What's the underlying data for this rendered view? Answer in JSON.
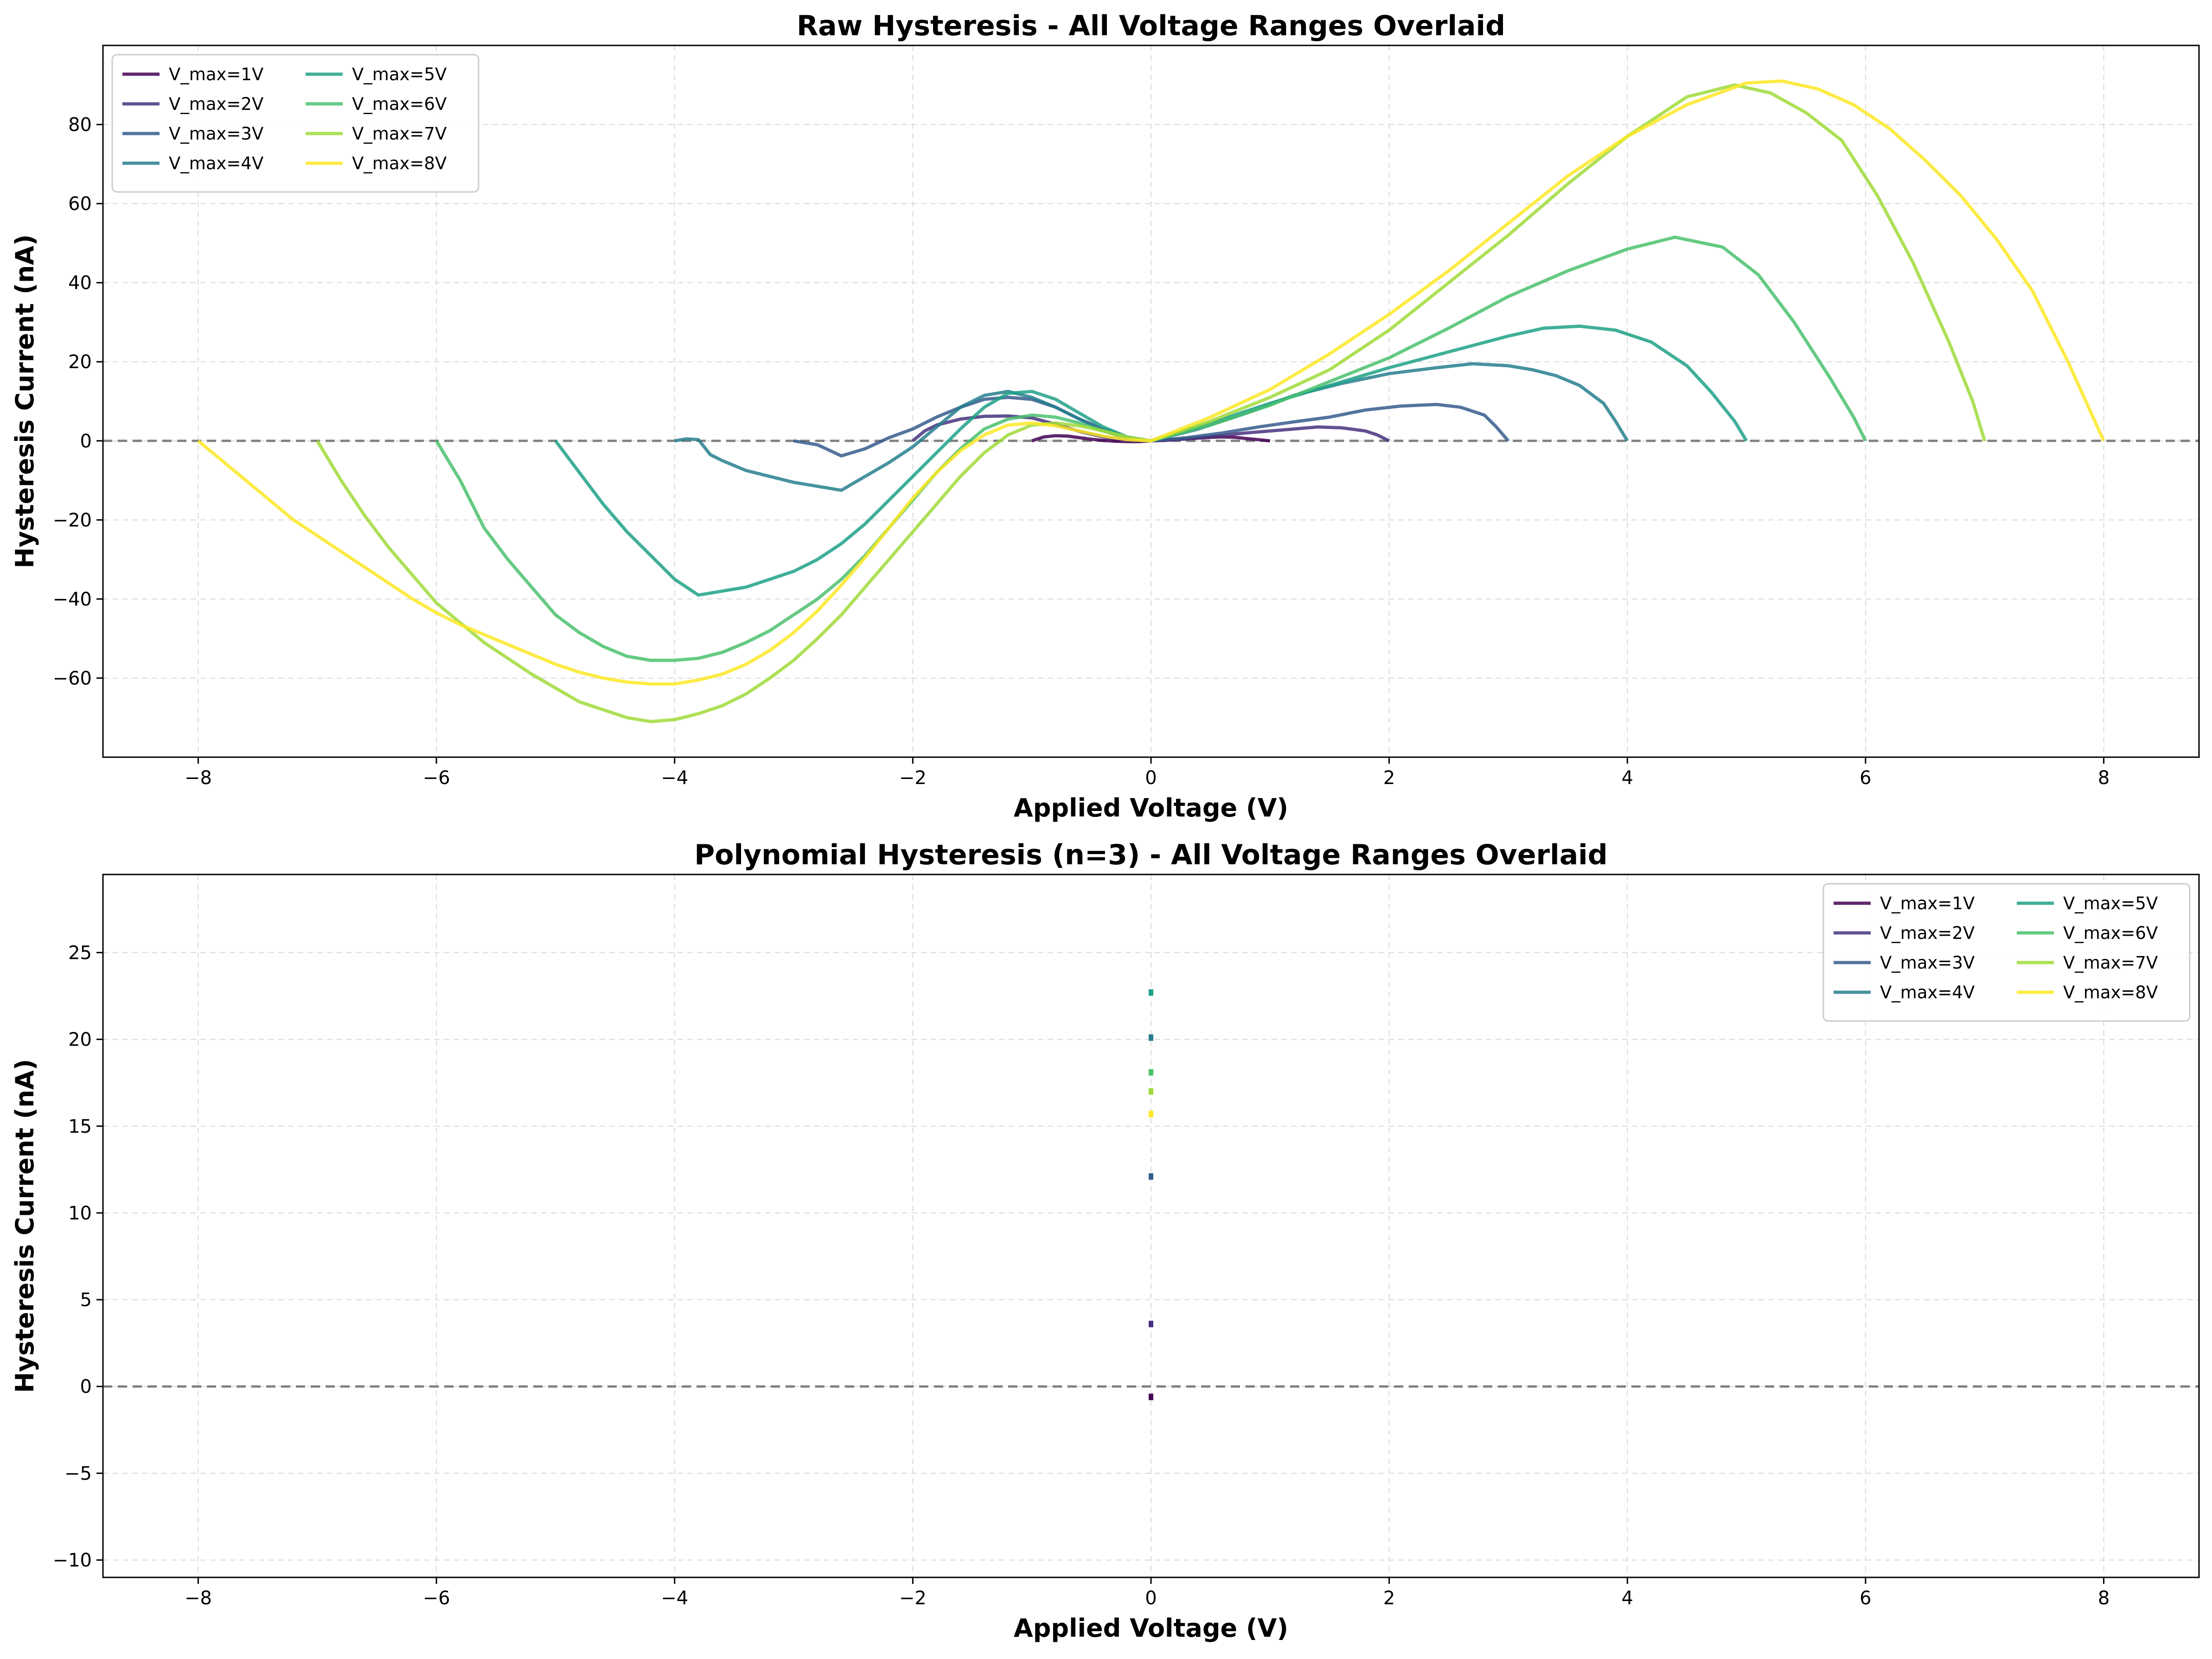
{
  "colors": {
    "V_max=1V": "#440154",
    "V_max=2V": "#46327e",
    "V_max=3V": "#365c8d",
    "V_max=4V": "#277f8e",
    "V_max=5V": "#1fa187",
    "V_max=6V": "#4ac16d",
    "V_max=7V": "#a0da39",
    "V_max=8V": "#fde725",
    "zero_line": "#808080",
    "grid": "#d9d9d9"
  },
  "chart_data": [
    {
      "type": "line",
      "title": "Raw Hysteresis - All Voltage Ranges Overlaid",
      "xlabel": "Applied Voltage (V)",
      "ylabel": "Hysteresis Current (nA)",
      "xlim": [
        -8.8,
        8.8
      ],
      "ylim": [
        -80,
        100
      ],
      "xticks": [
        -8,
        -6,
        -4,
        -2,
        0,
        2,
        4,
        6,
        8
      ],
      "yticks": [
        -60,
        -40,
        -20,
        0,
        20,
        40,
        60,
        80
      ],
      "xtick_labels": [
        "−8",
        "−6",
        "−4",
        "−2",
        "0",
        "2",
        "4",
        "6",
        "8"
      ],
      "ytick_labels": [
        "−60",
        "−40",
        "−20",
        "0",
        "20",
        "40",
        "60",
        "80"
      ],
      "grid": true,
      "reference_line_y": 0,
      "legend": {
        "location": "upper left",
        "columns": 2
      },
      "series": [
        {
          "name": "V_max=1V",
          "x": [
            -1.0,
            -0.9,
            -0.8,
            -0.7,
            -0.6,
            -0.5,
            -0.4,
            -0.3,
            -0.2,
            -0.1,
            0.0,
            0.1,
            0.2,
            0.3,
            0.4,
            0.5,
            0.6,
            0.7,
            0.8,
            0.9,
            1.0
          ],
          "y": [
            0.0,
            1.0,
            1.3,
            1.2,
            0.8,
            0.4,
            0.1,
            -0.1,
            -0.2,
            -0.2,
            0.0,
            0.1,
            0.3,
            0.5,
            0.7,
            0.9,
            1.0,
            0.9,
            0.6,
            0.3,
            0.0
          ]
        },
        {
          "name": "V_max=2V",
          "x": [
            -2.0,
            -1.9,
            -1.8,
            -1.6,
            -1.4,
            -1.2,
            -1.0,
            -0.8,
            -0.6,
            -0.4,
            -0.2,
            0.0,
            0.2,
            0.4,
            0.6,
            0.8,
            1.0,
            1.2,
            1.4,
            1.6,
            1.8,
            1.9,
            2.0
          ],
          "y": [
            0.0,
            2.5,
            4.0,
            5.5,
            6.2,
            6.3,
            5.8,
            4.2,
            2.4,
            1.0,
            0.2,
            0.0,
            0.3,
            0.8,
            1.4,
            2.0,
            2.5,
            3.0,
            3.5,
            3.3,
            2.5,
            1.5,
            0.0
          ]
        },
        {
          "name": "V_max=3V",
          "x": [
            -3.0,
            -2.8,
            -2.6,
            -2.4,
            -2.2,
            -2.0,
            -1.8,
            -1.6,
            -1.4,
            -1.2,
            -1.0,
            -0.8,
            -0.6,
            -0.4,
            -0.2,
            0.0,
            0.3,
            0.6,
            0.9,
            1.2,
            1.5,
            1.8,
            2.1,
            2.4,
            2.6,
            2.8,
            2.9,
            3.0
          ],
          "y": [
            0.0,
            -1.0,
            -3.8,
            -2.0,
            0.8,
            3.0,
            6.0,
            8.5,
            10.5,
            11.0,
            10.5,
            8.5,
            5.5,
            3.0,
            1.0,
            0.0,
            0.8,
            2.0,
            3.5,
            4.8,
            6.0,
            7.8,
            8.8,
            9.2,
            8.5,
            6.5,
            3.5,
            0.0
          ]
        },
        {
          "name": "V_max=4V",
          "x": [
            -4.0,
            -3.9,
            -3.8,
            -3.7,
            -3.6,
            -3.4,
            -3.2,
            -3.0,
            -2.8,
            -2.6,
            -2.4,
            -2.2,
            -2.0,
            -1.8,
            -1.6,
            -1.4,
            -1.2,
            -1.0,
            -0.8,
            -0.6,
            -0.4,
            -0.2,
            0.0,
            0.4,
            0.8,
            1.2,
            1.6,
            2.0,
            2.4,
            2.7,
            3.0,
            3.2,
            3.4,
            3.6,
            3.8,
            3.9,
            4.0
          ],
          "y": [
            0.0,
            0.5,
            0.3,
            -3.5,
            -5.0,
            -7.5,
            -9.0,
            -10.5,
            -11.5,
            -12.5,
            -9.0,
            -5.5,
            -1.5,
            3.5,
            8.5,
            11.5,
            12.5,
            11.0,
            8.5,
            5.5,
            2.5,
            0.8,
            0.0,
            3.0,
            7.0,
            11.5,
            14.5,
            17.0,
            18.5,
            19.5,
            19.0,
            18.0,
            16.5,
            14.0,
            9.5,
            5.0,
            0.0
          ]
        },
        {
          "name": "V_max=5V",
          "x": [
            -5.0,
            -4.8,
            -4.6,
            -4.4,
            -4.2,
            -4.0,
            -3.8,
            -3.6,
            -3.4,
            -3.2,
            -3.0,
            -2.8,
            -2.6,
            -2.4,
            -2.2,
            -2.0,
            -1.8,
            -1.6,
            -1.4,
            -1.2,
            -1.0,
            -0.8,
            -0.6,
            -0.4,
            -0.2,
            0.0,
            0.5,
            1.0,
            1.5,
            2.0,
            2.5,
            3.0,
            3.3,
            3.6,
            3.9,
            4.2,
            4.5,
            4.7,
            4.9,
            5.0
          ],
          "y": [
            0.0,
            -8.0,
            -16.0,
            -23.0,
            -29.0,
            -35.0,
            -39.0,
            -38.0,
            -37.0,
            -35.0,
            -33.0,
            -30.0,
            -26.0,
            -21.0,
            -15.0,
            -9.0,
            -3.0,
            3.0,
            8.5,
            12.0,
            12.5,
            10.5,
            7.0,
            3.5,
            1.0,
            0.0,
            4.5,
            9.5,
            14.0,
            18.5,
            22.5,
            26.5,
            28.5,
            29.0,
            28.0,
            25.0,
            19.0,
            12.5,
            5.0,
            0.0
          ]
        },
        {
          "name": "V_max=6V",
          "x": [
            -6.0,
            -5.8,
            -5.6,
            -5.4,
            -5.2,
            -5.0,
            -4.8,
            -4.6,
            -4.4,
            -4.2,
            -4.0,
            -3.8,
            -3.6,
            -3.4,
            -3.2,
            -3.0,
            -2.8,
            -2.6,
            -2.4,
            -2.2,
            -2.0,
            -1.8,
            -1.6,
            -1.4,
            -1.2,
            -1.0,
            -0.8,
            -0.6,
            -0.4,
            -0.2,
            0.0,
            0.5,
            1.0,
            1.5,
            2.0,
            2.5,
            3.0,
            3.5,
            4.0,
            4.4,
            4.8,
            5.1,
            5.4,
            5.7,
            5.9,
            6.0
          ],
          "y": [
            0.0,
            -10.0,
            -22.0,
            -30.0,
            -37.0,
            -44.0,
            -48.5,
            -52.0,
            -54.5,
            -55.5,
            -55.5,
            -55.0,
            -53.5,
            -51.0,
            -48.0,
            -44.0,
            -40.0,
            -35.0,
            -29.0,
            -22.0,
            -15.0,
            -8.0,
            -2.0,
            3.0,
            5.5,
            6.5,
            6.0,
            4.5,
            2.5,
            0.8,
            0.0,
            4.0,
            9.0,
            15.0,
            21.0,
            28.5,
            36.5,
            43.0,
            48.5,
            51.5,
            49.0,
            42.0,
            30.0,
            16.0,
            6.0,
            0.0
          ]
        },
        {
          "name": "V_max=7V",
          "x": [
            -7.0,
            -6.8,
            -6.6,
            -6.4,
            -6.2,
            -6.0,
            -5.8,
            -5.6,
            -5.4,
            -5.2,
            -5.0,
            -4.8,
            -4.6,
            -4.4,
            -4.2,
            -4.0,
            -3.8,
            -3.6,
            -3.4,
            -3.2,
            -3.0,
            -2.8,
            -2.6,
            -2.4,
            -2.2,
            -2.0,
            -1.8,
            -1.6,
            -1.4,
            -1.2,
            -1.0,
            -0.8,
            -0.6,
            -0.4,
            -0.2,
            0.0,
            0.5,
            1.0,
            1.5,
            2.0,
            2.5,
            3.0,
            3.5,
            4.0,
            4.5,
            4.9,
            5.2,
            5.5,
            5.8,
            6.1,
            6.4,
            6.7,
            6.9,
            7.0
          ],
          "y": [
            0.0,
            -10.0,
            -19.0,
            -27.0,
            -34.0,
            -41.0,
            -46.0,
            -51.0,
            -55.0,
            -59.0,
            -62.5,
            -66.0,
            -68.0,
            -70.0,
            -71.0,
            -70.5,
            -69.0,
            -67.0,
            -64.0,
            -60.0,
            -55.5,
            -50.0,
            -44.0,
            -37.0,
            -30.0,
            -23.0,
            -16.0,
            -9.0,
            -3.0,
            1.5,
            4.0,
            4.5,
            3.8,
            2.5,
            1.0,
            0.0,
            5.0,
            11.0,
            18.0,
            28.0,
            40.0,
            52.0,
            65.0,
            77.0,
            87.0,
            90.0,
            88.0,
            83.0,
            76.0,
            62.0,
            45.0,
            25.0,
            10.0,
            0.0
          ]
        },
        {
          "name": "V_max=8V",
          "x": [
            -8.0,
            -7.8,
            -7.6,
            -7.4,
            -7.2,
            -7.0,
            -6.8,
            -6.6,
            -6.4,
            -6.2,
            -6.0,
            -5.8,
            -5.6,
            -5.4,
            -5.2,
            -5.0,
            -4.8,
            -4.6,
            -4.4,
            -4.2,
            -4.0,
            -3.8,
            -3.6,
            -3.4,
            -3.2,
            -3.0,
            -2.8,
            -2.6,
            -2.4,
            -2.2,
            -2.0,
            -1.8,
            -1.6,
            -1.4,
            -1.2,
            -1.0,
            -0.8,
            -0.6,
            -0.4,
            -0.2,
            0.0,
            0.5,
            1.0,
            1.5,
            2.0,
            2.5,
            3.0,
            3.5,
            4.0,
            4.5,
            5.0,
            5.3,
            5.6,
            5.9,
            6.2,
            6.5,
            6.8,
            7.1,
            7.4,
            7.7,
            8.0
          ],
          "y": [
            0.0,
            -5.0,
            -10.0,
            -15.0,
            -20.0,
            -24.0,
            -28.0,
            -32.0,
            -36.0,
            -40.0,
            -43.5,
            -46.5,
            -49.0,
            -51.5,
            -54.0,
            -56.5,
            -58.5,
            -60.0,
            -61.0,
            -61.5,
            -61.5,
            -60.5,
            -59.0,
            -56.5,
            -53.0,
            -48.5,
            -43.0,
            -36.5,
            -29.5,
            -22.0,
            -14.5,
            -8.0,
            -2.5,
            1.5,
            4.0,
            4.5,
            3.8,
            2.5,
            1.2,
            0.3,
            0.0,
            6.0,
            13.0,
            22.0,
            32.0,
            43.0,
            55.0,
            67.0,
            77.0,
            85.0,
            90.5,
            91.0,
            89.0,
            85.0,
            79.0,
            71.0,
            62.0,
            51.0,
            38.0,
            20.0,
            0.0
          ]
        }
      ]
    },
    {
      "type": "scatter",
      "title": "Polynomial Hysteresis (n=3) - All Voltage Ranges Overlaid",
      "xlabel": "Applied Voltage (V)",
      "ylabel": "Hysteresis Current (nA)",
      "xlim": [
        -8.8,
        8.8
      ],
      "ylim": [
        -11,
        29.5
      ],
      "xticks": [
        -8,
        -6,
        -4,
        -2,
        0,
        2,
        4,
        6,
        8
      ],
      "yticks": [
        -10,
        -5,
        0,
        5,
        10,
        15,
        20,
        25
      ],
      "xtick_labels": [
        "−8",
        "−6",
        "−4",
        "−2",
        "0",
        "2",
        "4",
        "6",
        "8"
      ],
      "ytick_labels": [
        "−10",
        "−5",
        "0",
        "5",
        "10",
        "15",
        "20",
        "25"
      ],
      "grid": true,
      "reference_line_y": 0,
      "legend": {
        "location": "upper right",
        "columns": 2
      },
      "series": [
        {
          "name": "V_max=1V",
          "x": [
            0.0
          ],
          "y": [
            -0.6
          ]
        },
        {
          "name": "V_max=2V",
          "x": [
            0.0
          ],
          "y": [
            3.6
          ]
        },
        {
          "name": "V_max=3V",
          "x": [
            0.0
          ],
          "y": [
            12.1
          ]
        },
        {
          "name": "V_max=4V",
          "x": [
            0.0
          ],
          "y": [
            20.1
          ]
        },
        {
          "name": "V_max=5V",
          "x": [
            0.0
          ],
          "y": [
            22.7
          ]
        },
        {
          "name": "V_max=6V",
          "x": [
            0.0
          ],
          "y": [
            18.1
          ]
        },
        {
          "name": "V_max=7V",
          "x": [
            0.0
          ],
          "y": [
            17.0
          ]
        },
        {
          "name": "V_max=8V",
          "x": [
            0.0
          ],
          "y": [
            15.7
          ]
        }
      ]
    }
  ]
}
